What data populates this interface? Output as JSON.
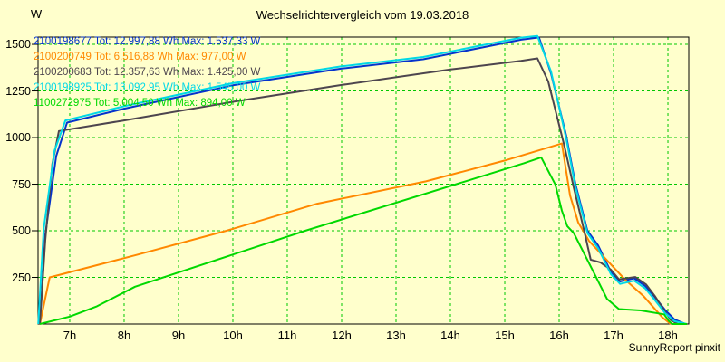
{
  "chart_data": {
    "type": "line",
    "title": "Wechselrichtervergleich vom 19.03.2018",
    "xlabel": "",
    "ylabel": "W",
    "credit": "SunnyReport pinxit",
    "grid": true,
    "grid_color": "#00c800",
    "background_color": "#FFFFCC",
    "axis_color": "#000000",
    "legend_position": "top-left",
    "xlim": [
      6.417,
      18.383
    ],
    "ylim": [
      0,
      1539
    ],
    "x_tick_hours": [
      7,
      8,
      9,
      10,
      11,
      12,
      13,
      14,
      15,
      16,
      17,
      18
    ],
    "x_tick_labels": [
      "7h",
      "8h",
      "9h",
      "10h",
      "11h",
      "12h",
      "13h",
      "14h",
      "15h",
      "16h",
      "17h",
      "18h"
    ],
    "y_ticks": [
      1500,
      1250,
      1000,
      750,
      500,
      250
    ],
    "y_tick_labels": [
      "1500",
      "1250",
      "1000",
      "750",
      "500",
      "250"
    ],
    "series": [
      {
        "name": "2100198677",
        "label": "2100198677 Tot: 12.997,88 Wh Max: 1.537,33 W",
        "total_wh": "12.997,88",
        "max_w": "1.537,33",
        "color": "#0533cc",
        "points": [
          [
            6.45,
            0
          ],
          [
            6.55,
            480
          ],
          [
            6.75,
            900
          ],
          [
            6.95,
            1080
          ],
          [
            8,
            1155
          ],
          [
            10,
            1280
          ],
          [
            12,
            1370
          ],
          [
            13.5,
            1420
          ],
          [
            14.7,
            1490
          ],
          [
            15.3,
            1525
          ],
          [
            15.63,
            1537
          ],
          [
            15.85,
            1345
          ],
          [
            16.13,
            1010
          ],
          [
            16.3,
            750
          ],
          [
            16.52,
            500
          ],
          [
            16.72,
            420
          ],
          [
            16.95,
            280
          ],
          [
            17.12,
            228
          ],
          [
            17.38,
            245
          ],
          [
            17.58,
            205
          ],
          [
            17.75,
            148
          ],
          [
            17.95,
            75
          ],
          [
            18.12,
            25
          ],
          [
            18.3,
            3
          ]
        ]
      },
      {
        "name": "2100200749",
        "label": "2100200749 Tot: 6.516,88 Wh Max: 977,00 W",
        "total_wh": "6.516,88",
        "max_w": "977,00",
        "color": "#ff8800",
        "points": [
          [
            6.45,
            0
          ],
          [
            6.63,
            250
          ],
          [
            8.22,
            370
          ],
          [
            9.88,
            500
          ],
          [
            11.55,
            645
          ],
          [
            13.55,
            765
          ],
          [
            15,
            877
          ],
          [
            16.05,
            968
          ],
          [
            16.2,
            690
          ],
          [
            16.35,
            545
          ],
          [
            16.55,
            445
          ],
          [
            17.2,
            242
          ],
          [
            17.55,
            150
          ],
          [
            17.9,
            35
          ],
          [
            18.05,
            0
          ]
        ]
      },
      {
        "name": "2100200683",
        "label": "2100200683 Tot: 12.357,63 Wh Max: 1.425,00 W",
        "total_wh": "12.357,63",
        "max_w": "1.425,00",
        "color": "#4d454e",
        "points": [
          [
            6.45,
            0
          ],
          [
            6.55,
            450
          ],
          [
            6.68,
            860
          ],
          [
            6.8,
            1035
          ],
          [
            8,
            1092
          ],
          [
            10,
            1192
          ],
          [
            12,
            1282
          ],
          [
            14,
            1365
          ],
          [
            15.3,
            1412
          ],
          [
            15.6,
            1425
          ],
          [
            15.8,
            1300
          ],
          [
            16.1,
            950
          ],
          [
            16.27,
            730
          ],
          [
            16.46,
            500
          ],
          [
            16.58,
            345
          ],
          [
            16.76,
            330
          ],
          [
            16.95,
            292
          ],
          [
            17.1,
            240
          ],
          [
            17.4,
            252
          ],
          [
            17.6,
            212
          ],
          [
            17.76,
            150
          ],
          [
            17.92,
            78
          ],
          [
            18.05,
            22
          ],
          [
            18.18,
            0
          ]
        ]
      },
      {
        "name": "2100198925",
        "label": "2100198925 Tot: 13.092,95 Wh Max: 1.545,00 W",
        "total_wh": "13.092,95",
        "max_w": "1.545,00",
        "color": "#00d8e6",
        "points": [
          [
            6.42,
            0
          ],
          [
            6.52,
            510
          ],
          [
            6.72,
            930
          ],
          [
            6.92,
            1092
          ],
          [
            8,
            1168
          ],
          [
            10,
            1292
          ],
          [
            12,
            1382
          ],
          [
            13.5,
            1432
          ],
          [
            14.7,
            1502
          ],
          [
            15.3,
            1536
          ],
          [
            15.6,
            1545
          ],
          [
            15.85,
            1355
          ],
          [
            16.13,
            995
          ],
          [
            16.3,
            735
          ],
          [
            16.52,
            488
          ],
          [
            16.72,
            405
          ],
          [
            16.95,
            268
          ],
          [
            17.12,
            215
          ],
          [
            17.38,
            232
          ],
          [
            17.58,
            192
          ],
          [
            17.75,
            132
          ],
          [
            17.95,
            58
          ],
          [
            18.12,
            15
          ],
          [
            18.35,
            0
          ]
        ]
      },
      {
        "name": "1100272975",
        "label": "1100272975 Tot: 5.004,50 Wh Max: 894,00 W",
        "total_wh": "5.004,50",
        "max_w": "894,00",
        "color": "#00d800",
        "points": [
          [
            6.45,
            0
          ],
          [
            7,
            40
          ],
          [
            7.5,
            95
          ],
          [
            8.2,
            200
          ],
          [
            11.33,
            500
          ],
          [
            14.33,
            770
          ],
          [
            15.35,
            862
          ],
          [
            15.67,
            894
          ],
          [
            15.93,
            748
          ],
          [
            16.05,
            608
          ],
          [
            16.15,
            525
          ],
          [
            16.27,
            487
          ],
          [
            16.63,
            280
          ],
          [
            16.88,
            135
          ],
          [
            17.1,
            80
          ],
          [
            17.5,
            73
          ],
          [
            17.93,
            52
          ],
          [
            18.02,
            15
          ],
          [
            18.08,
            0
          ],
          [
            18.35,
            0
          ]
        ]
      }
    ]
  }
}
